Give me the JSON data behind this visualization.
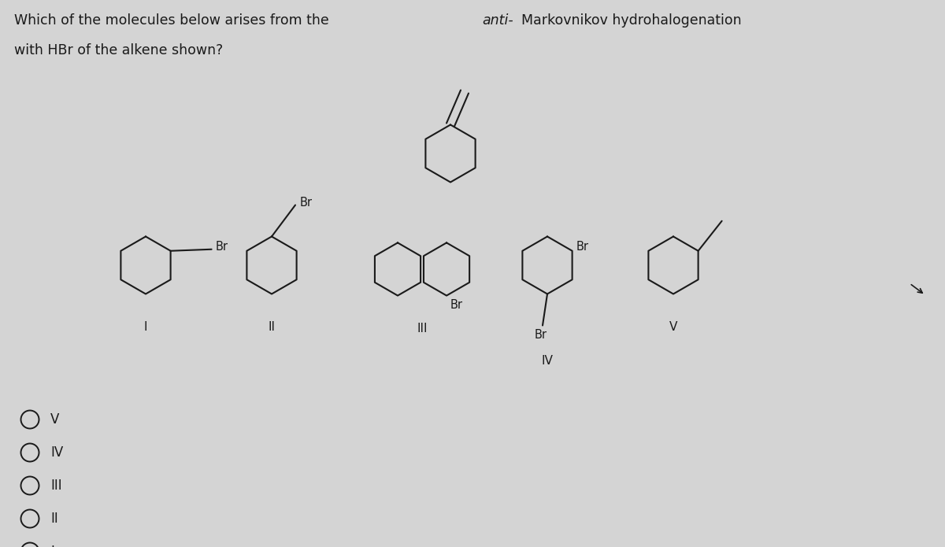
{
  "bg_color": "#d4d4d4",
  "text_color": "#1a1a1a",
  "choices": [
    "V",
    "IV",
    "III",
    "II",
    "I"
  ]
}
